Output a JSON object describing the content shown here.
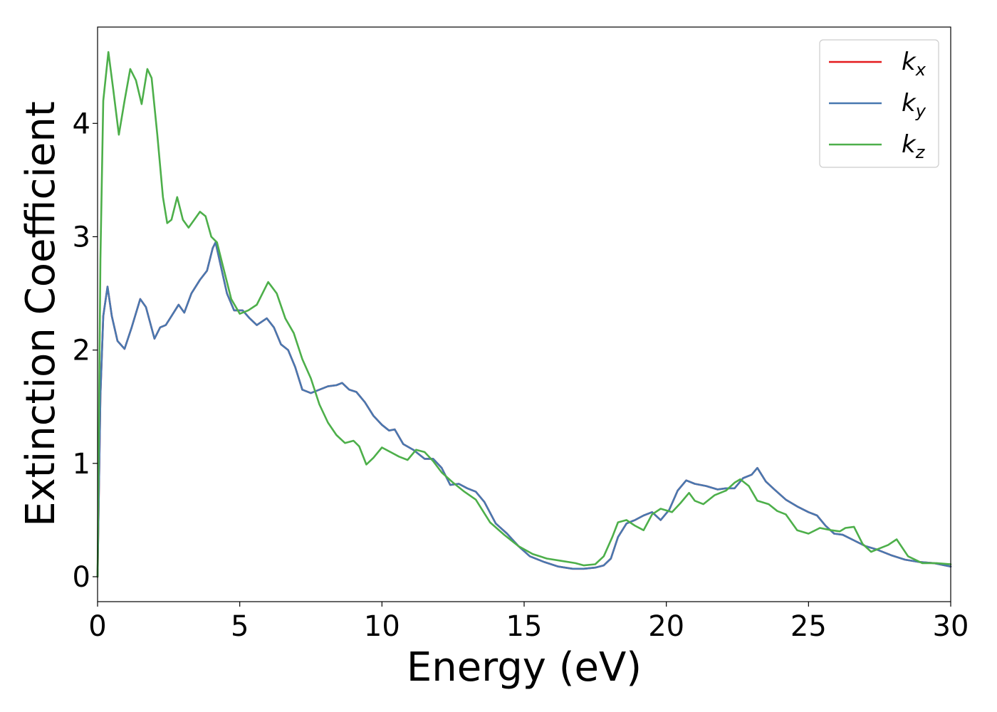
{
  "chart_data": {
    "type": "line",
    "xlabel": "Energy (eV)",
    "ylabel": "Extinction Coefficient",
    "xlim": [
      0,
      30
    ],
    "ylim": [
      -0.22,
      4.85
    ],
    "xticks": [
      0,
      5,
      10,
      15,
      20,
      25,
      30
    ],
    "yticks": [
      0,
      1,
      2,
      3,
      4
    ],
    "grid": false,
    "legend_position": "top-right",
    "series": [
      {
        "name": "k_x",
        "label_base": "k",
        "label_sub": "x",
        "color": "#e41a1c",
        "x": [
          0,
          0.1,
          0.2,
          0.35,
          0.5,
          0.7,
          0.95,
          1.2,
          1.5,
          1.7,
          2.0,
          2.2,
          2.4,
          2.6,
          2.85,
          3.05,
          3.3,
          3.6,
          3.85,
          4.05,
          4.15,
          4.3,
          4.55,
          4.8,
          5.1,
          5.35,
          5.6,
          5.95,
          6.2,
          6.45,
          6.7,
          6.95,
          7.2,
          7.5,
          7.8,
          8.1,
          8.4,
          8.6,
          8.85,
          9.1,
          9.4,
          9.7,
          10.0,
          10.25,
          10.45,
          10.75,
          11.1,
          11.5,
          11.8,
          12.1,
          12.4,
          12.7,
          13.0,
          13.3,
          13.6,
          14.0,
          14.4,
          14.8,
          15.2,
          15.7,
          16.2,
          16.7,
          17.1,
          17.5,
          17.8,
          18.05,
          18.3,
          18.6,
          18.9,
          19.2,
          19.5,
          19.8,
          20.1,
          20.4,
          20.7,
          21.0,
          21.4,
          21.8,
          22.1,
          22.4,
          22.7,
          23.0,
          23.2,
          23.5,
          23.8,
          24.2,
          24.6,
          25.0,
          25.3,
          25.6,
          25.9,
          26.2,
          26.6,
          27.0,
          27.4,
          27.9,
          28.4,
          28.9,
          29.4,
          30.0
        ],
        "y": [
          0,
          1.6,
          2.3,
          2.56,
          2.3,
          2.08,
          2.01,
          2.2,
          2.45,
          2.38,
          2.1,
          2.2,
          2.22,
          2.3,
          2.4,
          2.33,
          2.5,
          2.62,
          2.7,
          2.9,
          2.95,
          2.78,
          2.5,
          2.35,
          2.35,
          2.28,
          2.22,
          2.28,
          2.2,
          2.05,
          2.0,
          1.85,
          1.65,
          1.62,
          1.65,
          1.68,
          1.69,
          1.71,
          1.65,
          1.63,
          1.54,
          1.42,
          1.34,
          1.29,
          1.3,
          1.17,
          1.12,
          1.04,
          1.04,
          0.96,
          0.81,
          0.82,
          0.78,
          0.75,
          0.66,
          0.47,
          0.38,
          0.27,
          0.18,
          0.13,
          0.09,
          0.07,
          0.07,
          0.08,
          0.1,
          0.16,
          0.35,
          0.47,
          0.5,
          0.54,
          0.57,
          0.5,
          0.59,
          0.76,
          0.85,
          0.82,
          0.8,
          0.77,
          0.78,
          0.78,
          0.87,
          0.9,
          0.96,
          0.84,
          0.77,
          0.68,
          0.62,
          0.57,
          0.54,
          0.45,
          0.38,
          0.37,
          0.32,
          0.27,
          0.24,
          0.19,
          0.15,
          0.13,
          0.12,
          0.09
        ]
      },
      {
        "name": "k_y",
        "label_base": "k",
        "label_sub": "y",
        "color": "#4878b0",
        "x": [
          0,
          0.1,
          0.2,
          0.35,
          0.5,
          0.7,
          0.95,
          1.2,
          1.5,
          1.7,
          2.0,
          2.2,
          2.4,
          2.6,
          2.85,
          3.05,
          3.3,
          3.6,
          3.85,
          4.05,
          4.15,
          4.3,
          4.55,
          4.8,
          5.1,
          5.35,
          5.6,
          5.95,
          6.2,
          6.45,
          6.7,
          6.95,
          7.2,
          7.5,
          7.8,
          8.1,
          8.4,
          8.6,
          8.85,
          9.1,
          9.4,
          9.7,
          10.0,
          10.25,
          10.45,
          10.75,
          11.1,
          11.5,
          11.8,
          12.1,
          12.4,
          12.7,
          13.0,
          13.3,
          13.6,
          14.0,
          14.4,
          14.8,
          15.2,
          15.7,
          16.2,
          16.7,
          17.1,
          17.5,
          17.8,
          18.05,
          18.3,
          18.6,
          18.9,
          19.2,
          19.5,
          19.8,
          20.1,
          20.4,
          20.7,
          21.0,
          21.4,
          21.8,
          22.1,
          22.4,
          22.7,
          23.0,
          23.2,
          23.5,
          23.8,
          24.2,
          24.6,
          25.0,
          25.3,
          25.6,
          25.9,
          26.2,
          26.6,
          27.0,
          27.4,
          27.9,
          28.4,
          28.9,
          29.4,
          30.0
        ],
        "y": [
          0,
          1.6,
          2.3,
          2.56,
          2.3,
          2.08,
          2.01,
          2.2,
          2.45,
          2.38,
          2.1,
          2.2,
          2.22,
          2.3,
          2.4,
          2.33,
          2.5,
          2.62,
          2.7,
          2.9,
          2.95,
          2.78,
          2.5,
          2.35,
          2.35,
          2.28,
          2.22,
          2.28,
          2.2,
          2.05,
          2.0,
          1.85,
          1.65,
          1.62,
          1.65,
          1.68,
          1.69,
          1.71,
          1.65,
          1.63,
          1.54,
          1.42,
          1.34,
          1.29,
          1.3,
          1.17,
          1.12,
          1.04,
          1.04,
          0.96,
          0.81,
          0.82,
          0.78,
          0.75,
          0.66,
          0.47,
          0.38,
          0.27,
          0.18,
          0.13,
          0.09,
          0.07,
          0.07,
          0.08,
          0.1,
          0.16,
          0.35,
          0.47,
          0.5,
          0.54,
          0.57,
          0.5,
          0.59,
          0.76,
          0.85,
          0.82,
          0.8,
          0.77,
          0.78,
          0.78,
          0.87,
          0.9,
          0.96,
          0.84,
          0.77,
          0.68,
          0.62,
          0.57,
          0.54,
          0.45,
          0.38,
          0.37,
          0.32,
          0.27,
          0.24,
          0.19,
          0.15,
          0.13,
          0.12,
          0.09
        ]
      },
      {
        "name": "k_z",
        "label_base": "k",
        "label_sub": "z",
        "color": "#4daf4a",
        "x": [
          0,
          0.1,
          0.2,
          0.38,
          0.55,
          0.75,
          0.95,
          1.15,
          1.35,
          1.55,
          1.75,
          1.9,
          2.1,
          2.3,
          2.45,
          2.6,
          2.8,
          3.0,
          3.2,
          3.4,
          3.6,
          3.8,
          4.0,
          4.2,
          4.4,
          4.7,
          5.0,
          5.3,
          5.6,
          5.8,
          6.0,
          6.3,
          6.6,
          6.9,
          7.2,
          7.5,
          7.8,
          8.1,
          8.4,
          8.7,
          9.0,
          9.2,
          9.45,
          9.7,
          10.0,
          10.3,
          10.6,
          10.9,
          11.2,
          11.5,
          11.8,
          12.1,
          12.5,
          12.9,
          13.3,
          13.8,
          14.3,
          14.8,
          15.3,
          15.8,
          16.3,
          16.8,
          17.1,
          17.5,
          17.8,
          18.1,
          18.3,
          18.6,
          18.9,
          19.2,
          19.5,
          19.8,
          20.2,
          20.5,
          20.8,
          21.0,
          21.3,
          21.7,
          22.1,
          22.4,
          22.6,
          22.9,
          23.2,
          23.6,
          23.9,
          24.2,
          24.6,
          25.0,
          25.4,
          25.8,
          26.1,
          26.3,
          26.6,
          26.9,
          27.2,
          27.5,
          27.8,
          28.1,
          28.5,
          29.0,
          29.5,
          30.0
        ],
        "y": [
          0,
          2.8,
          4.2,
          4.63,
          4.3,
          3.9,
          4.2,
          4.48,
          4.38,
          4.17,
          4.48,
          4.4,
          3.9,
          3.35,
          3.12,
          3.15,
          3.35,
          3.15,
          3.08,
          3.15,
          3.22,
          3.18,
          3.0,
          2.95,
          2.75,
          2.45,
          2.32,
          2.35,
          2.4,
          2.5,
          2.6,
          2.5,
          2.28,
          2.15,
          1.92,
          1.75,
          1.52,
          1.36,
          1.25,
          1.18,
          1.2,
          1.15,
          0.99,
          1.05,
          1.14,
          1.1,
          1.06,
          1.03,
          1.12,
          1.1,
          1.02,
          0.92,
          0.83,
          0.75,
          0.68,
          0.48,
          0.37,
          0.27,
          0.2,
          0.16,
          0.14,
          0.12,
          0.1,
          0.11,
          0.18,
          0.35,
          0.48,
          0.5,
          0.45,
          0.41,
          0.55,
          0.6,
          0.57,
          0.65,
          0.74,
          0.67,
          0.64,
          0.72,
          0.76,
          0.83,
          0.86,
          0.8,
          0.67,
          0.64,
          0.58,
          0.55,
          0.41,
          0.38,
          0.43,
          0.41,
          0.4,
          0.43,
          0.44,
          0.29,
          0.22,
          0.25,
          0.28,
          0.33,
          0.18,
          0.12,
          0.12,
          0.11
        ]
      }
    ]
  }
}
